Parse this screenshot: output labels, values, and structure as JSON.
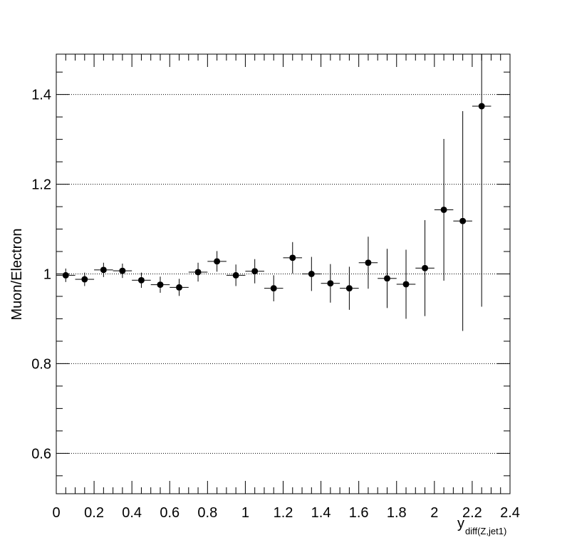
{
  "chart_data": {
    "type": "scatter",
    "title": "",
    "xlabel": "y",
    "xlabel_subscript": "diff(Z,jet1)",
    "ylabel": "Muon/Electron",
    "xlim": [
      0,
      2.4
    ],
    "ylim": [
      0.51,
      1.49
    ],
    "grid": "horizontal dotted",
    "legend": "none",
    "marker_color": "#000000",
    "xticks": [
      0,
      0.2,
      0.4,
      0.6,
      0.8,
      1,
      1.2,
      1.4,
      1.6,
      1.8,
      2,
      2.2,
      2.4
    ],
    "xtick_labels": [
      "0",
      "0.2",
      "0.4",
      "0.6",
      "0.8",
      "1",
      "1.2",
      "1.4",
      "1.6",
      "1.8",
      "2",
      "2.2",
      "2.4"
    ],
    "yticks": [
      0.6,
      0.8,
      1,
      1.2,
      1.4
    ],
    "ytick_labels": [
      "0.6",
      "0.8",
      "1",
      "1.2",
      "1.4"
    ],
    "x_bin_halfwidth": 0.05,
    "points": [
      {
        "x": 0.05,
        "y": 0.997,
        "yerr": 0.015
      },
      {
        "x": 0.15,
        "y": 0.988,
        "yerr": 0.015
      },
      {
        "x": 0.25,
        "y": 1.009,
        "yerr": 0.016
      },
      {
        "x": 0.35,
        "y": 1.007,
        "yerr": 0.016
      },
      {
        "x": 0.45,
        "y": 0.986,
        "yerr": 0.017
      },
      {
        "x": 0.55,
        "y": 0.976,
        "yerr": 0.018
      },
      {
        "x": 0.65,
        "y": 0.97,
        "yerr": 0.019
      },
      {
        "x": 0.75,
        "y": 1.004,
        "yerr": 0.021
      },
      {
        "x": 0.85,
        "y": 1.028,
        "yerr": 0.023
      },
      {
        "x": 0.95,
        "y": 0.997,
        "yerr": 0.024
      },
      {
        "x": 1.05,
        "y": 1.006,
        "yerr": 0.027
      },
      {
        "x": 1.15,
        "y": 0.968,
        "yerr": 0.029
      },
      {
        "x": 1.25,
        "y": 1.036,
        "yerr": 0.035
      },
      {
        "x": 1.35,
        "y": 1.0,
        "yerr": 0.038
      },
      {
        "x": 1.45,
        "y": 0.979,
        "yerr": 0.043
      },
      {
        "x": 1.55,
        "y": 0.968,
        "yerr": 0.048
      },
      {
        "x": 1.65,
        "y": 1.025,
        "yerr": 0.058
      },
      {
        "x": 1.75,
        "y": 0.99,
        "yerr": 0.066
      },
      {
        "x": 1.85,
        "y": 0.977,
        "yerr": 0.077
      },
      {
        "x": 1.95,
        "y": 1.013,
        "yerr": 0.107
      },
      {
        "x": 2.05,
        "y": 1.143,
        "yerr": 0.158
      },
      {
        "x": 2.15,
        "y": 1.118,
        "yerr": 0.245
      },
      {
        "x": 2.25,
        "y": 1.374,
        "yerr": 0.447
      }
    ]
  }
}
